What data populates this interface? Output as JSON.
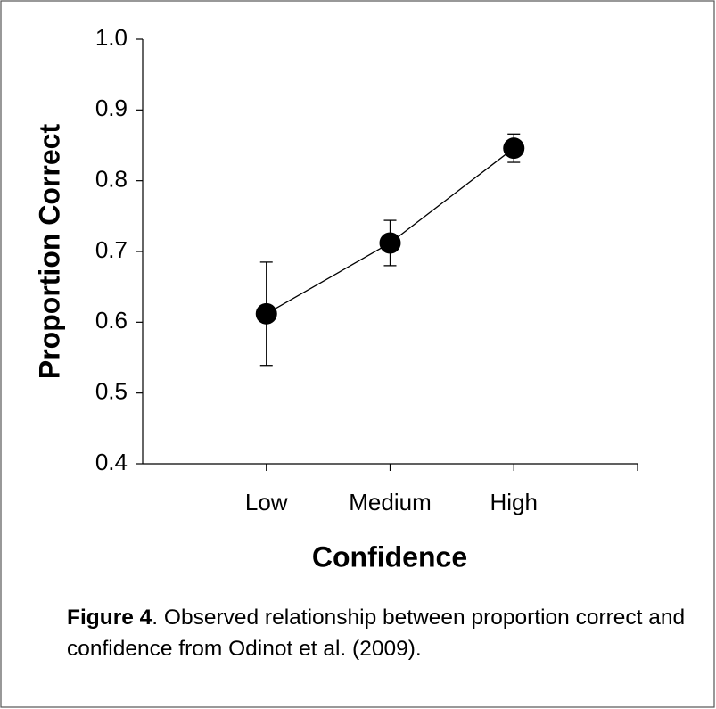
{
  "chart_data": {
    "type": "line",
    "ylabel": "Proportion Correct",
    "xlabel": "Confidence",
    "categories": [
      "Low",
      "Medium",
      "High"
    ],
    "values": [
      0.612,
      0.712,
      0.846
    ],
    "errors": [
      0.073,
      0.032,
      0.02
    ],
    "color": "#000000",
    "ylim": [
      0.4,
      1.0
    ],
    "yticks": [
      0.4,
      0.5,
      0.6,
      0.7,
      0.8,
      0.9,
      {
        "value": 1.0,
        "label": "1.0"
      }
    ],
    "grid": false
  },
  "caption": {
    "label": "Figure 4",
    "text": ". Observed relationship between proportion correct and confidence from Odinot et al. (2009)."
  }
}
